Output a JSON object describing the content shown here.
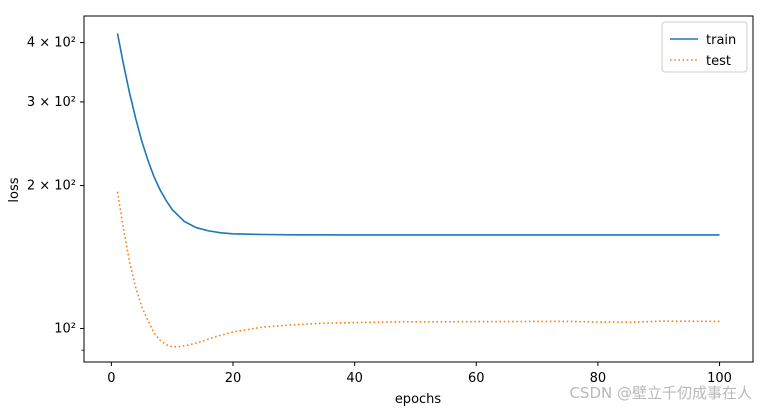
{
  "chart_data": {
    "type": "line",
    "xlabel": "epochs",
    "ylabel": "loss",
    "yscale": "log",
    "xlim": [
      -4.5,
      105.5
    ],
    "ylim": [
      85,
      455
    ],
    "x_ticks": [
      0,
      20,
      40,
      60,
      80,
      100
    ],
    "y_ticks": [
      {
        "value": 100,
        "label": "10²"
      },
      {
        "value": 200,
        "label": "2 × 10²"
      },
      {
        "value": 300,
        "label": "3 × 10²"
      },
      {
        "value": 400,
        "label": "4 × 10²"
      }
    ],
    "legend_position": "upper right",
    "grid": false,
    "series": [
      {
        "name": "train",
        "color": "#1f77b4",
        "style": "solid",
        "points": [
          [
            1,
            418
          ],
          [
            2,
            360
          ],
          [
            3,
            313
          ],
          [
            4,
            277
          ],
          [
            5,
            248
          ],
          [
            6,
            226
          ],
          [
            7,
            209
          ],
          [
            8,
            196
          ],
          [
            9,
            186
          ],
          [
            10,
            178
          ],
          [
            12,
            168
          ],
          [
            14,
            163
          ],
          [
            16,
            160.5
          ],
          [
            18,
            159
          ],
          [
            20,
            158.3
          ],
          [
            25,
            157.7
          ],
          [
            30,
            157.5
          ],
          [
            40,
            157.4
          ],
          [
            60,
            157.4
          ],
          [
            80,
            157.4
          ],
          [
            100,
            157.4
          ]
        ]
      },
      {
        "name": "test",
        "color": "#ff7f0e",
        "style": "dotted",
        "points": [
          [
            1,
            194
          ],
          [
            2,
            162
          ],
          [
            3,
            138
          ],
          [
            4,
            122
          ],
          [
            5,
            111
          ],
          [
            6,
            104
          ],
          [
            7,
            98
          ],
          [
            8,
            94.5
          ],
          [
            9,
            92.5
          ],
          [
            10,
            91.5
          ],
          [
            11,
            91.5
          ],
          [
            13,
            92.5
          ],
          [
            15,
            94
          ],
          [
            17,
            96
          ],
          [
            20,
            98.3
          ],
          [
            25,
            100.7
          ],
          [
            30,
            101.8
          ],
          [
            35,
            102.6
          ],
          [
            40,
            102.9
          ],
          [
            45,
            103.2
          ],
          [
            50,
            103.3
          ],
          [
            55,
            103.3
          ],
          [
            60,
            103.4
          ],
          [
            65,
            103.4
          ],
          [
            70,
            103.5
          ],
          [
            75,
            103.5
          ],
          [
            80,
            103.2
          ],
          [
            85,
            103.1
          ],
          [
            88,
            103.3
          ],
          [
            90,
            103.6
          ],
          [
            95,
            103.6
          ],
          [
            100,
            103.5
          ]
        ]
      }
    ]
  },
  "watermark": "CSDN @壁立千仞成事在人"
}
